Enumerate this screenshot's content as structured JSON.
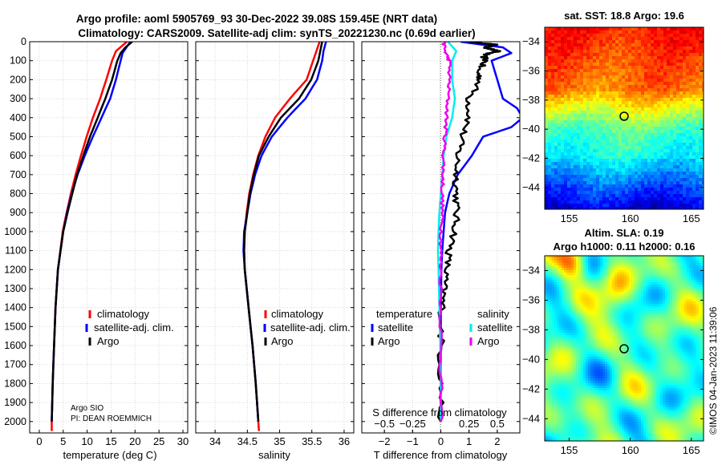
{
  "title": {
    "line1": "Argo profile: aoml 5905769_93 30-Dec-2022 39.08S 159.45E (NRT data)",
    "line2": "Climatology: CARS2009. Satellite-adj clim: synTS_20221230.nc (0.69d earlier)"
  },
  "colors": {
    "climatology": "#ff0000",
    "satellite": "#0000ff",
    "argo": "#000000",
    "sal_satellite": "#00eeee",
    "sal_argo": "#ee00ee"
  },
  "credits": {
    "institution": "Argo SIO",
    "pi": "PI: DEAN ROEMMICH"
  },
  "watermark": "©IMOS 04-Jan-2023 11:39:06",
  "chart_data": [
    {
      "type": "line",
      "name": "temperature-profile",
      "xlabel": "temperature (deg C)",
      "ylabel": "depth",
      "xlim": [
        -2,
        31
      ],
      "ylim": [
        2060,
        0
      ],
      "xticks": [
        0,
        5,
        10,
        15,
        20,
        25,
        30
      ],
      "yticks": [
        0,
        100,
        200,
        300,
        400,
        500,
        600,
        700,
        800,
        900,
        1000,
        1100,
        1200,
        1300,
        1400,
        1500,
        1600,
        1700,
        1800,
        1900,
        2000
      ],
      "legend": {
        "placement": "lower-right",
        "entries": [
          "climatology",
          "satellite-adj. clim.",
          "Argo"
        ]
      },
      "series": [
        {
          "name": "climatology",
          "color": "#ff0000",
          "depth": [
            0,
            50,
            100,
            200,
            300,
            400,
            500,
            600,
            700,
            800,
            900,
            1000,
            1200,
            1400,
            1600,
            1800,
            2000,
            2050
          ],
          "values": [
            18.3,
            16.0,
            15.2,
            14.0,
            12.7,
            11.2,
            9.9,
            8.7,
            7.6,
            6.6,
            5.7,
            4.9,
            3.9,
            3.4,
            3.1,
            2.8,
            2.6,
            2.6
          ]
        },
        {
          "name": "satellite-adj. clim.",
          "color": "#0000ff",
          "depth": [
            0,
            30,
            60,
            100,
            200,
            300,
            400,
            500,
            600,
            700,
            800,
            900,
            1000,
            1200,
            1400,
            1600,
            1800,
            2000
          ],
          "values": [
            19.0,
            18.2,
            17.4,
            17.0,
            16.0,
            14.8,
            13.0,
            11.2,
            9.5,
            8.0,
            6.8,
            5.8,
            5.0,
            3.9,
            3.4,
            3.1,
            2.8,
            2.6
          ]
        },
        {
          "name": "Argo",
          "color": "#000000",
          "depth": [
            0,
            30,
            60,
            100,
            200,
            300,
            400,
            500,
            600,
            700,
            800,
            900,
            1000,
            1200,
            1400,
            1600,
            1800,
            2000
          ],
          "values": [
            19.4,
            18.0,
            17.0,
            16.3,
            15.2,
            13.8,
            12.2,
            10.6,
            9.2,
            7.9,
            6.9,
            5.9,
            5.0,
            3.9,
            3.4,
            3.1,
            2.8,
            2.6
          ]
        }
      ]
    },
    {
      "type": "line",
      "name": "salinity-profile",
      "xlabel": "salinity",
      "xlim": [
        33.7,
        36.15
      ],
      "ylim": [
        2060,
        0
      ],
      "xticks": [
        34,
        34.5,
        35,
        35.5,
        36
      ],
      "legend": {
        "placement": "lower-right",
        "entries": [
          "climatology",
          "satellite-adj. clim.",
          "Argo"
        ]
      },
      "series": [
        {
          "name": "climatology",
          "color": "#ff0000",
          "depth": [
            0,
            50,
            100,
            200,
            300,
            400,
            500,
            600,
            700,
            800,
            900,
            1000,
            1100,
            1200,
            1400,
            1600,
            1800,
            2000,
            2050
          ],
          "values": [
            35.62,
            35.57,
            35.52,
            35.42,
            35.16,
            34.93,
            34.78,
            34.67,
            34.59,
            34.53,
            34.49,
            34.46,
            34.45,
            34.46,
            34.52,
            34.58,
            34.63,
            34.67,
            34.68
          ]
        },
        {
          "name": "satellite-adj. clim.",
          "color": "#0000ff",
          "depth": [
            0,
            50,
            100,
            200,
            300,
            400,
            500,
            600,
            700,
            800,
            900,
            1000,
            1100,
            1200,
            1400,
            1600,
            1800,
            2000
          ],
          "values": [
            35.72,
            35.68,
            35.66,
            35.58,
            35.4,
            35.12,
            34.88,
            34.72,
            34.62,
            34.55,
            34.5,
            34.45,
            34.44,
            34.46,
            34.52,
            34.58,
            34.63,
            34.67
          ]
        },
        {
          "name": "Argo",
          "color": "#000000",
          "depth": [
            0,
            50,
            100,
            200,
            300,
            400,
            500,
            600,
            700,
            800,
            900,
            1000,
            1100,
            1200,
            1400,
            1600,
            1800,
            2000
          ],
          "values": [
            35.66,
            35.63,
            35.6,
            35.49,
            35.3,
            35.02,
            34.83,
            34.68,
            34.6,
            34.54,
            34.5,
            34.46,
            34.45,
            34.46,
            34.52,
            34.58,
            34.63,
            34.67
          ]
        }
      ]
    },
    {
      "type": "line",
      "name": "difference-profile",
      "xlabel": "T difference from climatology",
      "x2label": "S difference from climatology",
      "xlim": [
        -2.8,
        2.8
      ],
      "ylim": [
        2060,
        0
      ],
      "xticks": [
        -2,
        -1,
        0,
        1,
        2
      ],
      "x2ticks": [
        -0.5,
        -0.25,
        0,
        0.25,
        0.5
      ],
      "legend_temperature": {
        "title": "temperature",
        "entries": [
          "satellite",
          "Argo"
        ]
      },
      "legend_salinity": {
        "title": "salinity",
        "entries": [
          "satellite",
          "Argo"
        ]
      },
      "series": [
        {
          "name": "temperature satellite",
          "color": "#0000ff",
          "depth": [
            0,
            30,
            60,
            100,
            200,
            300,
            350,
            400,
            450,
            500,
            600,
            700,
            800,
            900,
            1000,
            1100,
            1200,
            1400,
            1600,
            1800,
            2000
          ],
          "values": [
            0.7,
            2.2,
            2.5,
            1.8,
            2.0,
            2.2,
            2.7,
            2.9,
            2.5,
            1.5,
            1.1,
            0.6,
            0.3,
            0.15,
            0.1,
            0.05,
            0.02,
            0.0,
            0.0,
            0.0,
            0.0
          ]
        },
        {
          "name": "temperature Argo",
          "color": "#000000",
          "depth": [
            0,
            15,
            30,
            50,
            70,
            100,
            150,
            200,
            300,
            400,
            500,
            600,
            700,
            800,
            900,
            1000,
            1100,
            1200,
            1300,
            1400,
            1600,
            1800,
            2000
          ],
          "values": [
            1.1,
            1.9,
            1.6,
            2.0,
            1.5,
            1.6,
            1.3,
            1.4,
            1.0,
            1.0,
            0.75,
            0.6,
            0.55,
            0.55,
            0.55,
            0.5,
            0.3,
            0.2,
            0.1,
            0.05,
            0.0,
            0.0,
            0.0
          ]
        },
        {
          "name": "salinity satellite",
          "color": "#00eeee",
          "depth": [
            0,
            50,
            100,
            200,
            300,
            400,
            500,
            600,
            700,
            800,
            900,
            1000,
            1100,
            1200,
            1400,
            1600,
            1800,
            2000
          ],
          "values": [
            0.25,
            0.55,
            0.4,
            0.4,
            0.5,
            0.4,
            0.2,
            0.1,
            0.05,
            0.0,
            -0.05,
            -0.08,
            -0.1,
            -0.08,
            -0.05,
            -0.02,
            0.0,
            0.0
          ]
        },
        {
          "name": "salinity Argo",
          "color": "#ee00ee",
          "depth": [
            0,
            50,
            100,
            200,
            300,
            400,
            500,
            600,
            700,
            800,
            900,
            1000,
            1100,
            1200,
            1400,
            1600,
            1800,
            2000
          ],
          "values": [
            0.1,
            0.15,
            0.3,
            0.3,
            0.25,
            0.2,
            0.15,
            0.1,
            0.08,
            0.05,
            0.05,
            0.02,
            0.0,
            0.0,
            0.0,
            0.0,
            0.0,
            0.0
          ]
        }
      ]
    },
    {
      "type": "heatmap",
      "name": "sst-map",
      "title": "sat. SST: 18.8 Argo: 19.6",
      "xlim": [
        153,
        166
      ],
      "ylim": [
        -45.5,
        -33
      ],
      "xticks": [
        155,
        160,
        165
      ],
      "yticks": [
        -34,
        -36,
        -38,
        -40,
        -42,
        -44
      ],
      "marker": {
        "lon": 159.45,
        "lat": -39.08
      }
    },
    {
      "type": "heatmap",
      "name": "sla-map",
      "title_line1": "Altim. SLA: 0.19",
      "title_line2": "Argo h1000: 0.11 h2000: 0.16",
      "xlim": [
        153,
        166
      ],
      "ylim": [
        -45.5,
        -33
      ],
      "xticks": [
        155,
        160,
        165
      ],
      "yticks": [
        -34,
        -36,
        -38,
        -40,
        -42,
        -44
      ],
      "marker": {
        "lon": 159.45,
        "lat": -39.08
      }
    }
  ]
}
